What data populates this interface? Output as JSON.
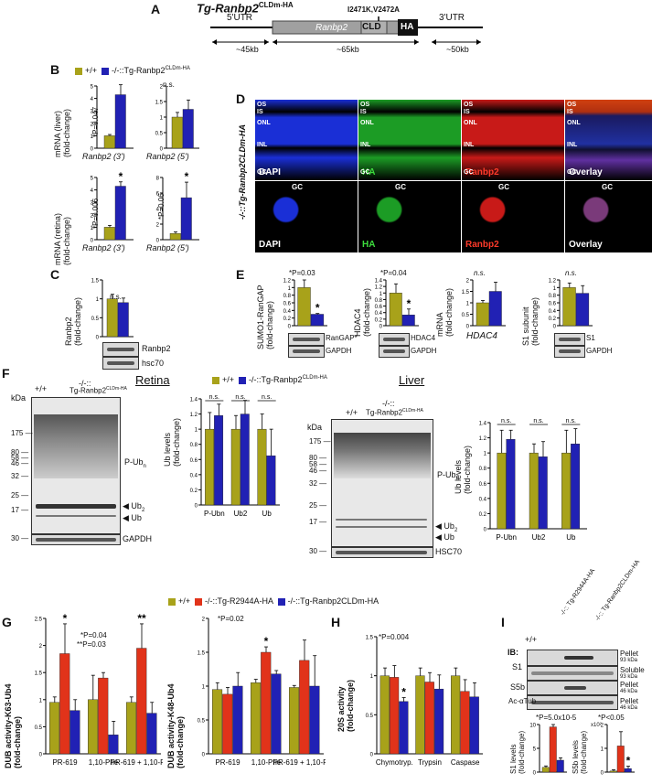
{
  "panel_labels": [
    "A",
    "B",
    "C",
    "D",
    "E",
    "F",
    "G",
    "H",
    "I"
  ],
  "colors": {
    "wt": "#a8a21a",
    "ranbp2": "#2121b4",
    "r2944a": "#e1331a",
    "dapi": "#1e2fd0",
    "ha": "#2fa52a",
    "red": "#c8201a"
  },
  "panelA": {
    "title": "Tg-Ranbp2",
    "title_sup": "CLDm-HA",
    "utr5": "5'UTR",
    "utr3": "3'UTR",
    "gene": "Ranbp2",
    "cld": "CLD",
    "ha": "HA",
    "mutation": "I2471K,V2472A",
    "dist_left": "~45kb",
    "dist_mid": "~65kb",
    "dist_right": "~50kb"
  },
  "panelB": {
    "legend_wt": "+/+",
    "legend_tg": "-/-::Tg-Ranbp2",
    "legend_tg_sup": "CLDm-HA",
    "ylabel_liver": "mRNA (liver)",
    "ylabel_retina": "mRNA (retina)",
    "ylabel_fold": "(fold-change)",
    "xlabels": [
      "Ranbp2 (3')",
      "Ranbp2 (5')",
      "Ranbp2 (3')",
      "Ranbp2 (5')"
    ],
    "stats": [
      "*P=0.047",
      "n.s.",
      "*P=0.006",
      "*P=0.06"
    ],
    "star": "*"
  },
  "panelC": {
    "ylabel": "Ranbp2",
    "ylabel2": "(fold-change)",
    "ns": "n.s.",
    "blot1": "Ranbp2",
    "blot2": "hsc70"
  },
  "panelD": {
    "side_label": "-/-::Tg-Ranbp2CLDm-HA",
    "layers": [
      "OS",
      "IS",
      "ONL",
      "INL",
      "GC"
    ],
    "top": [
      "DAPI",
      "HA",
      "Ranbp2",
      "Overlay"
    ],
    "bottom": [
      "DAPI",
      "HA",
      "Ranbp2",
      "Overlay"
    ],
    "gc": "GC"
  },
  "panelE": {
    "ylabels": [
      "SUMO1-RanGAP",
      "HDAC4",
      "mRNA",
      "S1 subunit"
    ],
    "fold": "(fold-change)",
    "stats": [
      "*P=0.03",
      "*P=0.04",
      "n.s.",
      "n.s."
    ],
    "blots": [
      [
        "RanGAP*",
        "GAPDH"
      ],
      [
        "HDAC4",
        "GAPDH"
      ],
      [
        "",
        ""
      ],
      [
        "S1",
        "GAPDH"
      ]
    ],
    "xlabel3": "HDAC4",
    "star": "*"
  },
  "panelF": {
    "retina": "Retina",
    "liver": "Liver",
    "legend_wt": "+/+",
    "legend_tg": "-/-::Tg-Ranbp2",
    "legend_tg_sup": "CLDm-HA",
    "kda": "kDa",
    "markers_retina": [
      "175",
      "80",
      "58",
      "46",
      "32",
      "25",
      "17",
      "30"
    ],
    "markers_liver": [
      "175",
      "80",
      "58",
      "46",
      "32",
      "25",
      "17",
      "30"
    ],
    "lanes_wt": "+/+",
    "lanes_tg": "-/-::",
    "lanes_tg2": "Tg-Ranbp2",
    "lanes_tg2_sup": "CLDm-HA",
    "pub": "P-Ub",
    "pub_sub": "n",
    "ub2": "Ub",
    "ub2_sub": "2",
    "ub": "Ub",
    "gapdh": "GAPDH",
    "hsc70": "HSC70",
    "ylabel": "Ub levels",
    "ylabel2": "(fold-change)",
    "xcats": [
      "P-Ubn",
      "Ub2",
      "Ub"
    ],
    "ns": "n.s."
  },
  "panelG": {
    "legend": [
      "+/+",
      "-/-::Tg-R2944A-HA",
      "-/-::Tg-Ranbp2CLDm-HA"
    ],
    "ylabel1": "DUB activity-K63-Ub4",
    "ylabel2": "DUB activity-K48-Ub4",
    "fold": "(fold-change)",
    "xcats": [
      "PR-619",
      "1,10-Phe",
      "PR-619 +",
      "1,10-Phe"
    ],
    "stats1": [
      "*P=0.04",
      "**P=0.03"
    ],
    "stats2": "*P=0.02"
  },
  "panelH": {
    "ylabel": "20S activity",
    "fold": "(fold-change)",
    "stat": "*P=0.004",
    "xcats": [
      "Chymotryp.",
      "Trypsin",
      "Caspase"
    ]
  },
  "panelI": {
    "ib": "IB:",
    "wt": "+/+",
    "tg1": "-/-::",
    "tg1b": "Tg-R2944A-HA",
    "tg2": "-/-::",
    "tg2b": "Tg-Ranbp2CLDm-HA",
    "rows": [
      "S1",
      "S5b",
      "Ac-αTub"
    ],
    "right": [
      "Pellet",
      "Soluble",
      "Pellet",
      "Pellet"
    ],
    "kdas": [
      "93 kDa",
      "93 kDa",
      "46 kDa",
      "46 kDa"
    ],
    "stat1": "*P=5.0x10-5",
    "stat2": "*P<0.05",
    "y1": "S1 levels",
    "y2": "S5b levels",
    "fold": "(fold-change)",
    "x10": "x10²"
  },
  "chart_data": [
    {
      "type": "bar",
      "id": "B1",
      "ylabel": "mRNA (liver) (fold-change)",
      "categories": [
        "Ranbp2 (3')"
      ],
      "series": [
        {
          "name": "+/+",
          "values": [
            1.0
          ],
          "err": [
            0.1
          ]
        },
        {
          "name": "-/-::Tg-Ranbp2CLDm-HA",
          "values": [
            4.3
          ],
          "err": [
            0.8
          ]
        }
      ],
      "ylim": [
        0,
        5
      ]
    },
    {
      "type": "bar",
      "id": "B2",
      "ylabel": "mRNA (liver) (fold-change)",
      "categories": [
        "Ranbp2 (5')"
      ],
      "series": [
        {
          "name": "+/+",
          "values": [
            1.0
          ],
          "err": [
            0.15
          ]
        },
        {
          "name": "-/-::Tg-Ranbp2CLDm-HA",
          "values": [
            1.25
          ],
          "err": [
            0.3
          ]
        }
      ],
      "ylim": [
        0,
        2
      ]
    },
    {
      "type": "bar",
      "id": "B3",
      "ylabel": "mRNA (retina) (fold-change)",
      "categories": [
        "Ranbp2 (3')"
      ],
      "series": [
        {
          "name": "+/+",
          "values": [
            1.0
          ],
          "err": [
            0.15
          ]
        },
        {
          "name": "-/-::Tg-Ranbp2CLDm-HA",
          "values": [
            4.3
          ],
          "err": [
            0.35
          ]
        }
      ],
      "ylim": [
        0,
        5
      ]
    },
    {
      "type": "bar",
      "id": "B4",
      "ylabel": "mRNA (retina) (fold-change)",
      "categories": [
        "Ranbp2 (5')"
      ],
      "series": [
        {
          "name": "+/+",
          "values": [
            0.8
          ],
          "err": [
            0.2
          ]
        },
        {
          "name": "-/-::Tg-Ranbp2CLDm-HA",
          "values": [
            5.4
          ],
          "err": [
            2.0
          ]
        }
      ],
      "ylim": [
        0,
        8
      ]
    },
    {
      "type": "bar",
      "id": "C",
      "ylabel": "Ranbp2 (fold-change)",
      "categories": [
        ""
      ],
      "series": [
        {
          "name": "+/+",
          "values": [
            1.0
          ],
          "err": [
            0.12
          ]
        },
        {
          "name": "-/-::Tg-Ranbp2CLDm-HA",
          "values": [
            0.9
          ],
          "err": [
            0.12
          ]
        }
      ],
      "ylim": [
        0,
        1.5
      ]
    },
    {
      "type": "bar",
      "id": "E1",
      "ylabel": "SUMO1-RanGAP (fold-change)",
      "categories": [
        ""
      ],
      "series": [
        {
          "name": "+/+",
          "values": [
            1.0
          ],
          "err": [
            0.2
          ]
        },
        {
          "name": "-/-::Tg-Ranbp2CLDm-HA",
          "values": [
            0.3
          ],
          "err": [
            0.02
          ]
        }
      ],
      "ylim": [
        0,
        1.2
      ]
    },
    {
      "type": "bar",
      "id": "E2",
      "ylabel": "HDAC4 (fold-change)",
      "categories": [
        ""
      ],
      "series": [
        {
          "name": "+/+",
          "values": [
            1.0
          ],
          "err": [
            0.28
          ]
        },
        {
          "name": "-/-::Tg-Ranbp2CLDm-HA",
          "values": [
            0.33
          ],
          "err": [
            0.18
          ]
        }
      ],
      "ylim": [
        0,
        1.4
      ]
    },
    {
      "type": "bar",
      "id": "E3",
      "ylabel": "mRNA (fold-change)",
      "categories": [
        "HDAC4"
      ],
      "series": [
        {
          "name": "+/+",
          "values": [
            1.0
          ],
          "err": [
            0.1
          ]
        },
        {
          "name": "-/-::Tg-Ranbp2CLDm-HA",
          "values": [
            1.5
          ],
          "err": [
            0.4
          ]
        }
      ],
      "ylim": [
        0,
        2
      ]
    },
    {
      "type": "bar",
      "id": "E4",
      "ylabel": "S1 subunit (fold-change)",
      "categories": [
        ""
      ],
      "series": [
        {
          "name": "+/+",
          "values": [
            1.0
          ],
          "err": [
            0.12
          ]
        },
        {
          "name": "-/-::Tg-Ranbp2CLDm-HA",
          "values": [
            0.85
          ],
          "err": [
            0.2
          ]
        }
      ],
      "ylim": [
        0,
        1.2
      ]
    },
    {
      "type": "bar",
      "id": "F1",
      "ylabel": "Ub levels (fold-change)",
      "categories": [
        "P-Ubn",
        "Ub2",
        "Ub"
      ],
      "series": [
        {
          "name": "+/+",
          "values": [
            1.0,
            1.0,
            1.0
          ],
          "err": [
            0.22,
            0.18,
            0.2
          ]
        },
        {
          "name": "-/-::Tg-Ranbp2CLDm-HA",
          "values": [
            1.18,
            1.2,
            0.65
          ],
          "err": [
            0.15,
            0.18,
            0.35
          ]
        }
      ],
      "ylim": [
        0,
        1.4
      ]
    },
    {
      "type": "bar",
      "id": "F2",
      "ylabel": "Ub levels (fold-change)",
      "categories": [
        "P-Ubn",
        "Ub2",
        "Ub"
      ],
      "series": [
        {
          "name": "+/+",
          "values": [
            1.0,
            1.0,
            1.0
          ],
          "err": [
            0.3,
            0.12,
            0.3
          ]
        },
        {
          "name": "-/-::Tg-Ranbp2CLDm-HA",
          "values": [
            1.18,
            0.95,
            1.12
          ],
          "err": [
            0.12,
            0.2,
            0.2
          ]
        }
      ],
      "ylim": [
        0,
        1.4
      ]
    },
    {
      "type": "bar",
      "id": "G1",
      "ylabel": "DUB activity-K63-Ub4 (fold-change)",
      "categories": [
        "PR-619",
        "1,10-Phe",
        "PR-619 + 1,10-Phe"
      ],
      "series": [
        {
          "name": "+/+",
          "values": [
            0.95,
            1.0,
            0.95
          ],
          "err": [
            0.1,
            0.45,
            0.1
          ]
        },
        {
          "name": "-/-::Tg-R2944A-HA",
          "values": [
            1.85,
            1.4,
            1.95
          ],
          "err": [
            0.55,
            0.1,
            0.45
          ]
        },
        {
          "name": "-/-::Tg-Ranbp2CLDm-HA",
          "values": [
            0.8,
            0.35,
            0.75
          ],
          "err": [
            0.2,
            0.25,
            0.2
          ]
        }
      ],
      "ylim": [
        0,
        2.5
      ]
    },
    {
      "type": "bar",
      "id": "G2",
      "ylabel": "DUB activity-K48-Ub4 (fold-change)",
      "categories": [
        "PR-619",
        "1,10-Phe",
        "PR-619 + 1,10-Phe"
      ],
      "series": [
        {
          "name": "+/+",
          "values": [
            0.95,
            1.05,
            0.98
          ],
          "err": [
            0.1,
            0.05,
            0.03
          ]
        },
        {
          "name": "-/-::Tg-R2944A-HA",
          "values": [
            0.88,
            1.5,
            1.38
          ],
          "err": [
            0.1,
            0.08,
            0.3
          ]
        },
        {
          "name": "-/-::Tg-Ranbp2CLDm-HA",
          "values": [
            1.0,
            1.18,
            1.0
          ],
          "err": [
            0.2,
            0.05,
            0.45
          ]
        }
      ],
      "ylim": [
        0,
        2.0
      ]
    },
    {
      "type": "bar",
      "id": "H",
      "ylabel": "20S activity (fold-change)",
      "categories": [
        "Chymotryp.",
        "Trypsin",
        "Caspase"
      ],
      "series": [
        {
          "name": "+/+",
          "values": [
            1.0,
            1.0,
            1.0
          ],
          "err": [
            0.1,
            0.1,
            0.1
          ]
        },
        {
          "name": "-/-::Tg-R2944A-HA",
          "values": [
            0.98,
            0.92,
            0.8
          ],
          "err": [
            0.15,
            0.12,
            0.15
          ]
        },
        {
          "name": "-/-::Tg-Ranbp2CLDm-HA",
          "values": [
            0.67,
            0.83,
            0.73
          ],
          "err": [
            0.05,
            0.18,
            0.18
          ]
        }
      ],
      "ylim": [
        0,
        1.5
      ]
    },
    {
      "type": "bar",
      "id": "I1",
      "ylabel": "S1 levels (fold-change)",
      "categories": [
        ""
      ],
      "series": [
        {
          "name": "+/+",
          "values": [
            1.0
          ],
          "err": [
            0.3
          ]
        },
        {
          "name": "-/-::Tg-R2944A-HA",
          "values": [
            9.5
          ],
          "err": [
            0.5
          ]
        },
        {
          "name": "-/-::Tg-Ranbp2CLDm-HA",
          "values": [
            2.5
          ],
          "err": [
            0.5
          ]
        }
      ],
      "ylim": [
        0,
        10
      ]
    },
    {
      "type": "bar",
      "id": "I2",
      "ylabel": "S5b levels (fold-change)",
      "categories": [
        ""
      ],
      "series": [
        {
          "name": "+/+",
          "values": [
            0.05
          ],
          "err": [
            0.05
          ]
        },
        {
          "name": "-/-::Tg-R2944A-HA",
          "values": [
            1.1
          ],
          "err": [
            0.6
          ]
        },
        {
          "name": "-/-::Tg-Ranbp2CLDm-HA",
          "values": [
            0.15
          ],
          "err": [
            0.1
          ]
        }
      ],
      "ylim": [
        0,
        2
      ]
    }
  ]
}
